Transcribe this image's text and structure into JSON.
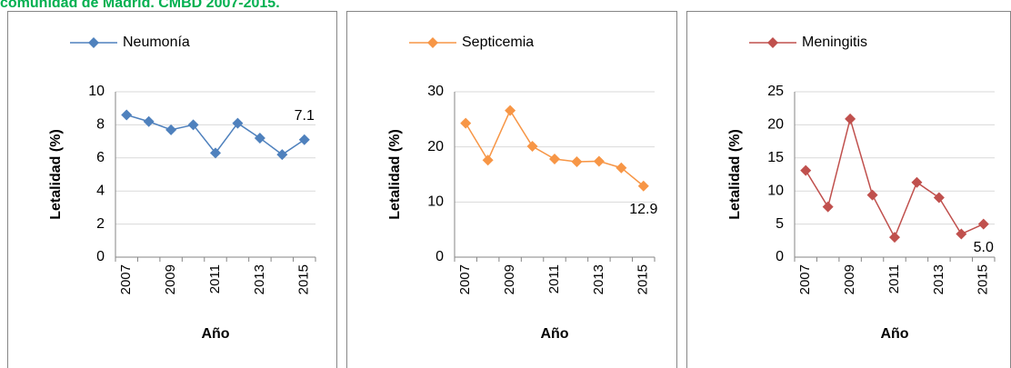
{
  "title": "comunidad de Madrid. CMBD 2007-2015.",
  "chart_data": [
    {
      "type": "line",
      "series": [
        {
          "name": "Neumonía",
          "color": "#4f81bd",
          "values": [
            8.6,
            8.2,
            7.7,
            8.0,
            6.3,
            8.1,
            7.2,
            6.2,
            7.1
          ],
          "value_labels": [
            null,
            null,
            null,
            null,
            null,
            null,
            null,
            null,
            "7.1"
          ]
        }
      ],
      "categories": [
        "2007",
        null,
        "2009",
        null,
        "2011",
        null,
        "2013",
        null,
        "2015"
      ],
      "ylim": [
        0,
        10
      ],
      "yticks": [
        0,
        2,
        4,
        6,
        8,
        10
      ],
      "grid": true,
      "y_label": "Letalidad (%)",
      "x_label": "Año",
      "legend": "top"
    },
    {
      "type": "line",
      "series": [
        {
          "name": "Septicemia",
          "color": "#f79646",
          "values": [
            24.3,
            17.6,
            26.6,
            20.1,
            17.8,
            17.3,
            17.4,
            16.2,
            12.9
          ],
          "value_labels": [
            null,
            null,
            null,
            null,
            null,
            null,
            null,
            null,
            "12.9"
          ]
        }
      ],
      "categories": [
        "2007",
        null,
        "2009",
        null,
        "2011",
        null,
        "2013",
        null,
        "2015"
      ],
      "ylim": [
        0,
        30
      ],
      "yticks": [
        0,
        10,
        20,
        30
      ],
      "grid": true,
      "y_label": "Letalidad (%)",
      "x_label": "Año",
      "legend": "top"
    },
    {
      "type": "line",
      "series": [
        {
          "name": "Meningitis",
          "color": "#c0504d",
          "values": [
            13.1,
            7.6,
            20.9,
            9.4,
            3.0,
            11.3,
            9.0,
            3.5,
            5.0
          ],
          "value_labels": [
            null,
            null,
            null,
            null,
            null,
            null,
            null,
            null,
            "5.0"
          ]
        }
      ],
      "categories": [
        "2007",
        null,
        "2009",
        null,
        "2011",
        null,
        "2013",
        null,
        "2015"
      ],
      "ylim": [
        0,
        25
      ],
      "yticks": [
        0,
        5,
        10,
        15,
        20,
        25
      ],
      "grid": true,
      "y_label": "Letalidad (%)",
      "x_label": "Año",
      "legend": "top"
    }
  ]
}
